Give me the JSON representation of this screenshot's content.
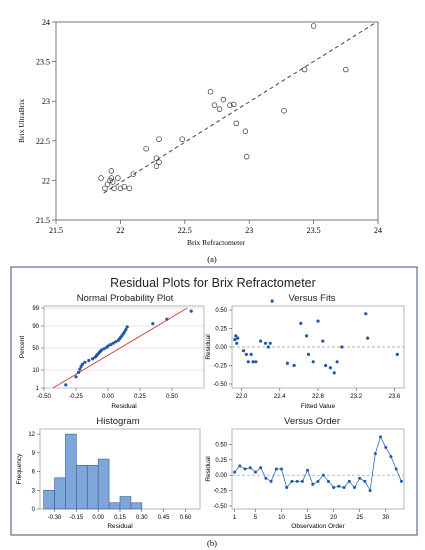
{
  "panel_a": {
    "label": "(a)",
    "chart_data": {
      "type": "scatter",
      "xlabel": "Brix Refractometer",
      "ylabel": "Brix UltraBrix",
      "xlim": [
        21.5,
        24
      ],
      "ylim": [
        21.5,
        24
      ],
      "xticks": [
        "21.5",
        "22",
        "22.5",
        "23",
        "23.5",
        "24"
      ],
      "yticks": [
        "21.5",
        "22",
        "22.5",
        "23",
        "23.5",
        "24"
      ],
      "trend_line": {
        "x": [
          21.87,
          23.97
        ],
        "y": [
          21.84,
          23.98
        ]
      },
      "points": [
        {
          "x": 21.85,
          "y": 22.03
        },
        {
          "x": 21.88,
          "y": 21.9
        },
        {
          "x": 21.9,
          "y": 21.95
        },
        {
          "x": 21.92,
          "y": 22.0
        },
        {
          "x": 21.93,
          "y": 22.03
        },
        {
          "x": 21.94,
          "y": 21.98
        },
        {
          "x": 21.93,
          "y": 22.12
        },
        {
          "x": 21.95,
          "y": 21.9
        },
        {
          "x": 21.98,
          "y": 22.03
        },
        {
          "x": 22.0,
          "y": 21.9
        },
        {
          "x": 22.03,
          "y": 21.92
        },
        {
          "x": 22.07,
          "y": 21.9
        },
        {
          "x": 22.1,
          "y": 22.08
        },
        {
          "x": 22.2,
          "y": 22.4
        },
        {
          "x": 22.28,
          "y": 22.28
        },
        {
          "x": 22.28,
          "y": 22.18
        },
        {
          "x": 22.3,
          "y": 22.23
        },
        {
          "x": 22.3,
          "y": 22.52
        },
        {
          "x": 22.48,
          "y": 22.52
        },
        {
          "x": 22.7,
          "y": 23.12
        },
        {
          "x": 22.73,
          "y": 22.95
        },
        {
          "x": 22.77,
          "y": 22.9
        },
        {
          "x": 22.8,
          "y": 23.02
        },
        {
          "x": 22.85,
          "y": 22.95
        },
        {
          "x": 22.88,
          "y": 22.96
        },
        {
          "x": 22.9,
          "y": 22.72
        },
        {
          "x": 22.97,
          "y": 22.62
        },
        {
          "x": 22.98,
          "y": 22.3
        },
        {
          "x": 23.27,
          "y": 22.88
        },
        {
          "x": 23.43,
          "y": 23.4
        },
        {
          "x": 23.5,
          "y": 23.95
        },
        {
          "x": 23.75,
          "y": 23.4
        }
      ]
    }
  },
  "panel_b": {
    "label": "(b)",
    "title": "Residual Plots for Brix Refractometer",
    "charts": [
      {
        "type": "scatter",
        "title": "Normal Probability Plot",
        "xlabel": "Residual",
        "ylabel": "Percent",
        "xticks": [
          "-0.50",
          "-0.25",
          "0.00",
          "0.25",
          "0.50"
        ],
        "yticks": [
          "1",
          "10",
          "50",
          "90",
          "99"
        ],
        "y_percent": [
          1,
          10,
          50,
          90,
          99
        ],
        "fit_line": {
          "x": [
            -0.43,
            0.62
          ],
          "y_percent": [
            1,
            99
          ]
        },
        "points": [
          {
            "x": -0.33,
            "y": 1.6
          },
          {
            "x": -0.25,
            "y": 4.7
          },
          {
            "x": -0.23,
            "y": 7.8
          },
          {
            "x": -0.22,
            "y": 10.9
          },
          {
            "x": -0.21,
            "y": 14.1
          },
          {
            "x": -0.2,
            "y": 17.2
          },
          {
            "x": -0.18,
            "y": 20.3
          },
          {
            "x": -0.15,
            "y": 23.4
          },
          {
            "x": -0.12,
            "y": 26.6
          },
          {
            "x": -0.1,
            "y": 29.7
          },
          {
            "x": -0.09,
            "y": 32.8
          },
          {
            "x": -0.08,
            "y": 35.9
          },
          {
            "x": -0.07,
            "y": 39.1
          },
          {
            "x": -0.06,
            "y": 42.2
          },
          {
            "x": -0.05,
            "y": 45.3
          },
          {
            "x": -0.03,
            "y": 48.4
          },
          {
            "x": -0.01,
            "y": 51.6
          },
          {
            "x": 0.0,
            "y": 54.7
          },
          {
            "x": 0.02,
            "y": 57.8
          },
          {
            "x": 0.04,
            "y": 60.9
          },
          {
            "x": 0.06,
            "y": 64.1
          },
          {
            "x": 0.08,
            "y": 67.2
          },
          {
            "x": 0.09,
            "y": 70.3
          },
          {
            "x": 0.1,
            "y": 73.4
          },
          {
            "x": 0.11,
            "y": 76.6
          },
          {
            "x": 0.12,
            "y": 79.7
          },
          {
            "x": 0.13,
            "y": 82.8
          },
          {
            "x": 0.14,
            "y": 85.9
          },
          {
            "x": 0.15,
            "y": 89.1
          },
          {
            "x": 0.35,
            "y": 92.2
          },
          {
            "x": 0.46,
            "y": 95.3
          },
          {
            "x": 0.65,
            "y": 98.4
          }
        ]
      },
      {
        "type": "scatter",
        "title": "Versus Fits",
        "xlabel": "Fitted Value",
        "ylabel": "Residual",
        "xlim": [
          21.9,
          23.7
        ],
        "ylim": [
          -0.5,
          0.5
        ],
        "xticks": [
          "22.0",
          "22.4",
          "22.8",
          "23.2",
          "23.6"
        ],
        "yticks": [
          "-0.50",
          "-0.25",
          "0.00",
          "0.25",
          "0.50"
        ],
        "points": [
          {
            "x": 21.93,
            "y": 0.1
          },
          {
            "x": 21.94,
            "y": 0.15
          },
          {
            "x": 21.95,
            "y": 0.05
          },
          {
            "x": 21.96,
            "y": 0.12
          },
          {
            "x": 22.02,
            "y": -0.05
          },
          {
            "x": 22.05,
            "y": -0.1
          },
          {
            "x": 22.07,
            "y": -0.2
          },
          {
            "x": 22.1,
            "y": -0.1
          },
          {
            "x": 22.12,
            "y": -0.2
          },
          {
            "x": 22.15,
            "y": -0.2
          },
          {
            "x": 22.2,
            "y": 0.08
          },
          {
            "x": 22.25,
            "y": 0.05
          },
          {
            "x": 22.28,
            "y": 0.0
          },
          {
            "x": 22.3,
            "y": 0.05
          },
          {
            "x": 22.32,
            "y": 0.62
          },
          {
            "x": 22.48,
            "y": -0.22
          },
          {
            "x": 22.55,
            "y": -0.25
          },
          {
            "x": 22.62,
            "y": 0.32
          },
          {
            "x": 22.68,
            "y": 0.15
          },
          {
            "x": 22.7,
            "y": -0.1
          },
          {
            "x": 22.75,
            "y": -0.2
          },
          {
            "x": 22.8,
            "y": 0.35
          },
          {
            "x": 22.85,
            "y": 0.08
          },
          {
            "x": 22.88,
            "y": -0.25
          },
          {
            "x": 22.93,
            "y": -0.28
          },
          {
            "x": 22.97,
            "y": -0.35
          },
          {
            "x": 23.0,
            "y": -0.2
          },
          {
            "x": 23.05,
            "y": 0.0
          },
          {
            "x": 23.3,
            "y": 0.45
          },
          {
            "x": 23.32,
            "y": 0.12
          },
          {
            "x": 23.63,
            "y": -0.1
          }
        ]
      },
      {
        "type": "bar",
        "title": "Histogram",
        "xlabel": "Residual",
        "ylabel": "Frequency",
        "xticks": [
          "-0.30",
          "-0.15",
          "0.00",
          "0.15",
          "0.30",
          "0.45",
          "0.60"
        ],
        "yticks": [
          "0",
          "3",
          "6",
          "9",
          "12"
        ],
        "ylim": [
          0,
          12.5
        ],
        "bin_width": 0.075,
        "bins": [
          {
            "from": -0.375,
            "to": -0.3,
            "count": 3
          },
          {
            "from": -0.3,
            "to": -0.225,
            "count": 5
          },
          {
            "from": -0.225,
            "to": -0.15,
            "count": 12
          },
          {
            "from": -0.15,
            "to": -0.075,
            "count": 7
          },
          {
            "from": -0.075,
            "to": 0.0,
            "count": 7
          },
          {
            "from": 0.0,
            "to": 0.075,
            "count": 8
          },
          {
            "from": 0.075,
            "to": 0.15,
            "count": 1
          },
          {
            "from": 0.15,
            "to": 0.225,
            "count": 2
          },
          {
            "from": 0.225,
            "to": 0.3,
            "count": 1
          }
        ]
      },
      {
        "type": "line",
        "title": "Versus Order",
        "xlabel": "Observation Order",
        "ylabel": "Residual",
        "xlim": [
          0.5,
          33.5
        ],
        "ylim": [
          -0.5,
          0.7
        ],
        "xticks": [
          "1",
          "5",
          "10",
          "15",
          "20",
          "25",
          "30"
        ],
        "yticks": [
          "-0.50",
          "-0.25",
          "0.00",
          "0.25",
          "0.50"
        ],
        "values": [
          0.05,
          0.15,
          0.1,
          0.12,
          0.05,
          0.12,
          -0.05,
          -0.1,
          0.1,
          0.1,
          -0.2,
          -0.1,
          -0.1,
          -0.1,
          0.08,
          -0.15,
          -0.1,
          0.0,
          -0.1,
          -0.2,
          -0.18,
          -0.2,
          -0.1,
          -0.2,
          -0.05,
          -0.1,
          -0.25,
          0.35,
          0.62,
          0.45,
          0.3,
          0.1,
          -0.1
        ]
      }
    ]
  },
  "colors": {
    "marker_blue": "#1f5aa8",
    "fit_red": "#d93a3a",
    "bar_fill": "#7ea6d8",
    "panel_b_border": "#3d4f80",
    "grid": "#d0d0d0"
  }
}
